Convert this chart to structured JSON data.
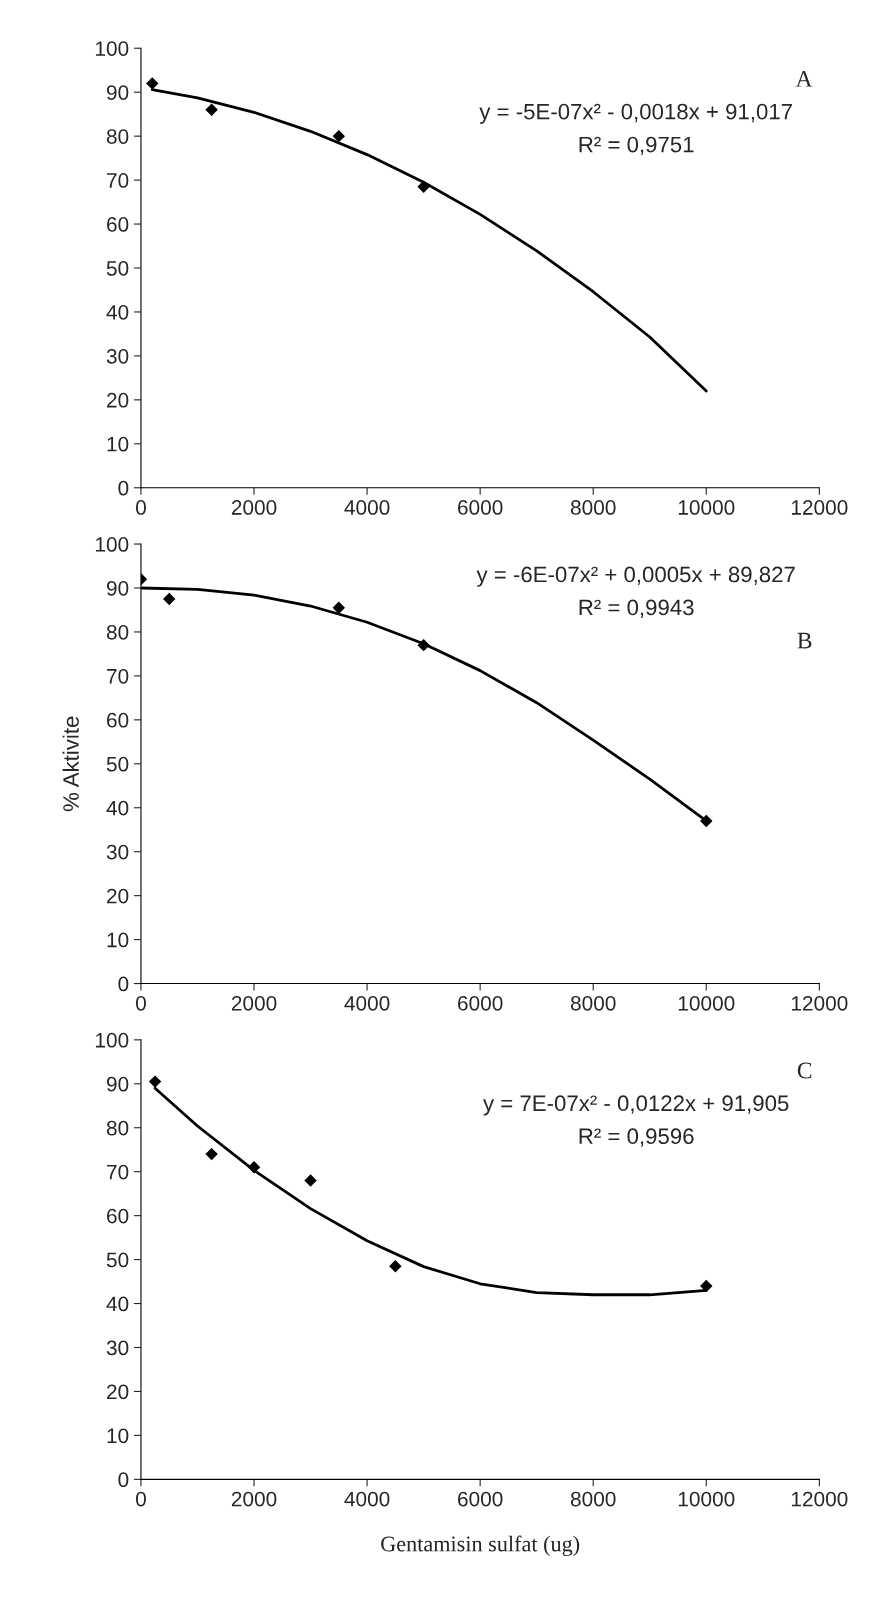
{
  "chart_data": [
    {
      "type": "scatter",
      "xlim": [
        0,
        12000
      ],
      "xticks": [
        0,
        2000,
        4000,
        6000,
        8000,
        10000,
        12000
      ],
      "ylim": [
        0,
        100
      ],
      "yticks": [
        0,
        10,
        20,
        30,
        40,
        50,
        60,
        70,
        80,
        90,
        100
      ],
      "legend": false,
      "annotations": [
        "A",
        "y = -5E-07x² - 0,0018x + 91,017",
        "R² = 0,9751"
      ],
      "series": [
        {
          "color": "#000000",
          "marker": "diamond",
          "x": [
            200,
            1250,
            3500,
            5000
          ],
          "values": [
            92,
            86,
            80,
            68.5
          ]
        },
        {
          "type": "line",
          "marker": "none",
          "color": "#000000",
          "x": [
            200,
            1000,
            2000,
            3000,
            4000,
            5000,
            6000,
            7000,
            8000,
            9000,
            10000
          ],
          "values": [
            90.6,
            88.7,
            85.4,
            81.1,
            75.8,
            69.5,
            62.2,
            53.9,
            44.6,
            34.3,
            22
          ]
        }
      ]
    },
    {
      "type": "scatter",
      "xlim": [
        0,
        12000
      ],
      "xticks": [
        0,
        2000,
        4000,
        6000,
        8000,
        10000,
        12000
      ],
      "ylim": [
        0,
        100
      ],
      "yticks": [
        0,
        10,
        20,
        30,
        40,
        50,
        60,
        70,
        80,
        90,
        100
      ],
      "legend": false,
      "ylabel": "% Aktivite",
      "annotations": [
        "y = -6E-07x² + 0,0005x + 89,827",
        "R² = 0,9943",
        "B"
      ],
      "series": [
        {
          "color": "#000000",
          "marker": "diamond",
          "x": [
            0,
            500,
            3500,
            5000,
            10000
          ],
          "values": [
            92,
            87.5,
            85.5,
            77,
            37
          ]
        },
        {
          "type": "line",
          "marker": "none",
          "color": "#000000",
          "x": [
            0,
            1000,
            2000,
            3000,
            4000,
            5000,
            6000,
            7000,
            8000,
            9000,
            10000
          ],
          "values": [
            90,
            89.7,
            88.4,
            85.9,
            82.2,
            77.3,
            71.2,
            63.9,
            55.4,
            46.5,
            37
          ]
        }
      ]
    },
    {
      "type": "scatter",
      "xlim": [
        0,
        12000
      ],
      "xticks": [
        0,
        2000,
        4000,
        6000,
        8000,
        10000,
        12000
      ],
      "ylim": [
        0,
        100
      ],
      "yticks": [
        0,
        10,
        20,
        30,
        40,
        50,
        60,
        70,
        80,
        90,
        100
      ],
      "legend": false,
      "xlabel": "Gentamisin sulfat (ug)",
      "annotations": [
        "C",
        "y = 7E-07x² - 0,0122x + 91,905",
        "R² = 0,9596"
      ],
      "series": [
        {
          "color": "#000000",
          "marker": "diamond",
          "x": [
            250,
            1250,
            2000,
            3000,
            4500,
            10000
          ],
          "values": [
            90.5,
            74,
            71,
            68,
            48.5,
            44
          ]
        },
        {
          "type": "line",
          "marker": "none",
          "color": "#000000",
          "x": [
            250,
            1000,
            2000,
            3000,
            4000,
            5000,
            6000,
            7000,
            8000,
            9000,
            10000
          ],
          "values": [
            89,
            80.4,
            70.3,
            61.6,
            54.3,
            48.4,
            44.5,
            42.5,
            42,
            42,
            43
          ]
        }
      ]
    }
  ]
}
